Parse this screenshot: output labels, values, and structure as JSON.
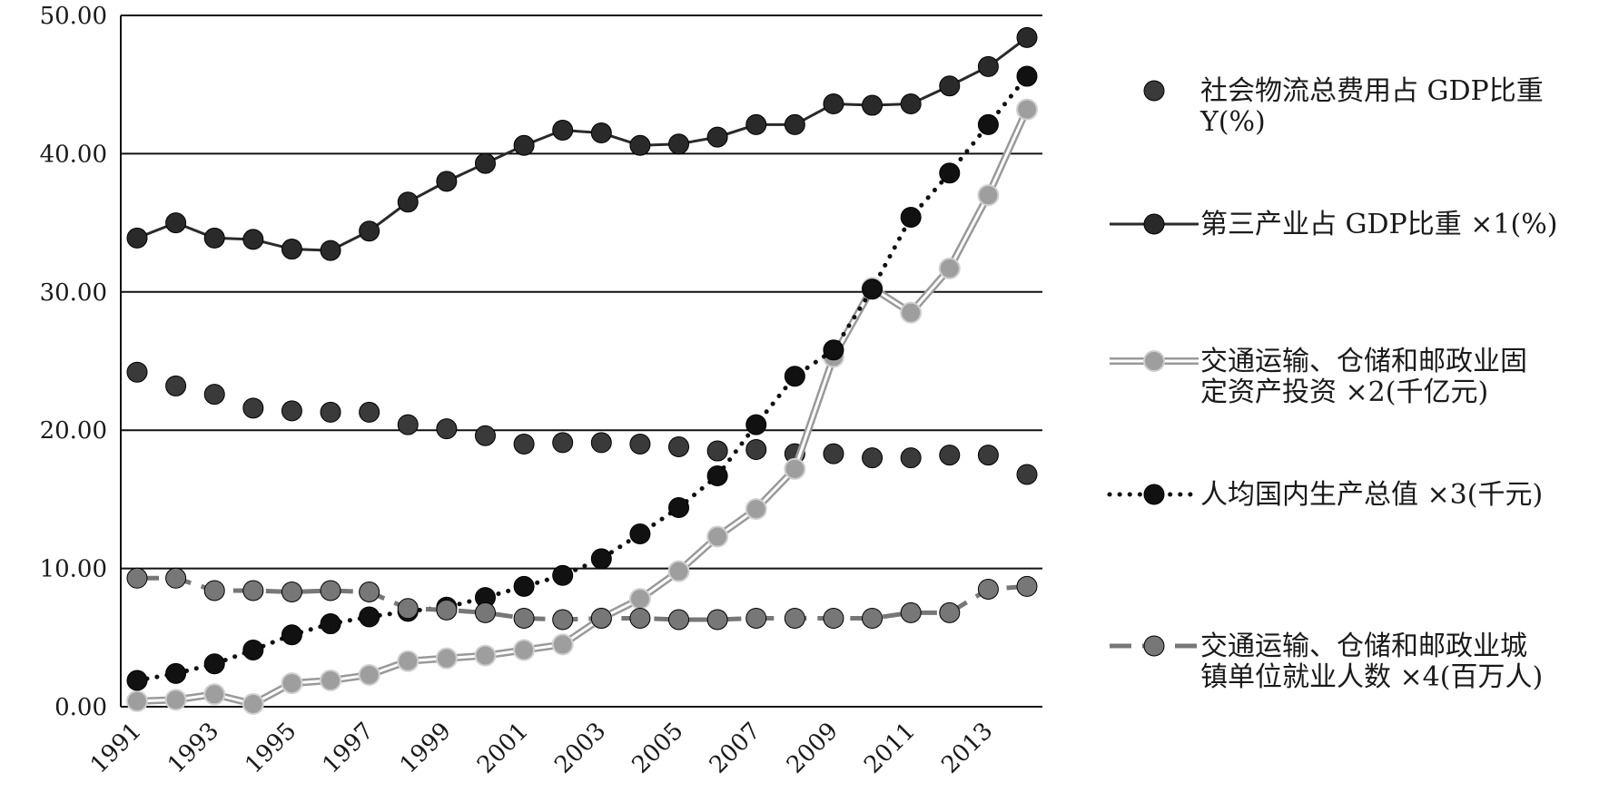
{
  "chart_data": {
    "type": "line",
    "title": "",
    "xlabel": "",
    "ylabel": "",
    "ylim": [
      0,
      50
    ],
    "yticks": [
      "0.00",
      "10.00",
      "20.00",
      "30.00",
      "40.00",
      "50.00"
    ],
    "x": [
      1991,
      1992,
      1993,
      1994,
      1995,
      1996,
      1997,
      1998,
      1999,
      2000,
      2001,
      2002,
      2003,
      2004,
      2005,
      2006,
      2007,
      2008,
      2009,
      2010,
      2011,
      2012,
      2013,
      2014
    ],
    "xticks": [
      "1991",
      "1993",
      "1995",
      "1997",
      "1999",
      "2001",
      "2003",
      "2005",
      "2007",
      "2009",
      "2011",
      "2013"
    ],
    "grid": "horizontal",
    "legend_position": "right",
    "series": [
      {
        "name": "社会物流总费用占 GDP比重 Y(%)",
        "legend_lines": [
          "社会物流总费用占 GDP比重",
          "Y(%)"
        ],
        "style": "markers",
        "color": "#3a3a3a",
        "values": [
          24.2,
          23.2,
          22.6,
          21.6,
          21.4,
          21.3,
          21.3,
          20.4,
          20.1,
          19.6,
          19.0,
          19.1,
          19.1,
          19.0,
          18.8,
          18.5,
          18.6,
          18.3,
          18.3,
          18.0,
          18.0,
          18.2,
          18.2,
          16.8
        ]
      },
      {
        "name": "第三产业占 GDP比重 ×1(%)",
        "legend_lines": [
          "第三产业占 GDP比重 ×1(%)"
        ],
        "style": "solid",
        "color": "#2a2a2a",
        "values": [
          33.9,
          35.0,
          33.9,
          33.8,
          33.1,
          33.0,
          34.4,
          36.5,
          38.0,
          39.3,
          40.6,
          41.7,
          41.5,
          40.6,
          40.7,
          41.2,
          42.1,
          42.1,
          43.6,
          43.5,
          43.6,
          44.9,
          46.3,
          48.4
        ]
      },
      {
        "name": "交通运输、仓储和邮政业固定资产投资 ×2(千亿元)",
        "legend_lines": [
          "交通运输、仓储和邮政业固",
          "定资产投资 ×2(千亿元)"
        ],
        "style": "double",
        "color": "#999999",
        "values": [
          0.4,
          0.5,
          0.9,
          0.2,
          1.7,
          1.9,
          2.3,
          3.3,
          3.5,
          3.7,
          4.1,
          4.5,
          6.4,
          7.8,
          9.8,
          12.3,
          14.3,
          17.2,
          25.3,
          30.3,
          28.5,
          31.7,
          37.0,
          43.2
        ]
      },
      {
        "name": "人均国内生产总值 ×3(千元)",
        "legend_lines": [
          "人均国内生产总值 ×3(千元)"
        ],
        "style": "dotted",
        "color": "#111111",
        "values": [
          1.9,
          2.4,
          3.1,
          4.1,
          5.2,
          6.0,
          6.5,
          6.9,
          7.2,
          7.9,
          8.7,
          9.5,
          10.7,
          12.5,
          14.4,
          16.7,
          20.4,
          23.9,
          25.8,
          30.2,
          35.4,
          38.6,
          42.1,
          45.6
        ]
      },
      {
        "name": "交通运输、仓储和邮政业城镇单位就业人数 ×4(百万人)",
        "legend_lines": [
          "交通运输、仓储和邮政业城",
          "镇单位就业人数 ×4(百万人)"
        ],
        "style": "dashed",
        "color": "#777777",
        "values": [
          9.3,
          9.3,
          8.4,
          8.4,
          8.3,
          8.4,
          8.3,
          7.1,
          7.0,
          6.8,
          6.4,
          6.3,
          6.4,
          6.4,
          6.3,
          6.3,
          6.4,
          6.4,
          6.4,
          6.4,
          6.8,
          6.8,
          8.5,
          8.7
        ]
      }
    ]
  }
}
